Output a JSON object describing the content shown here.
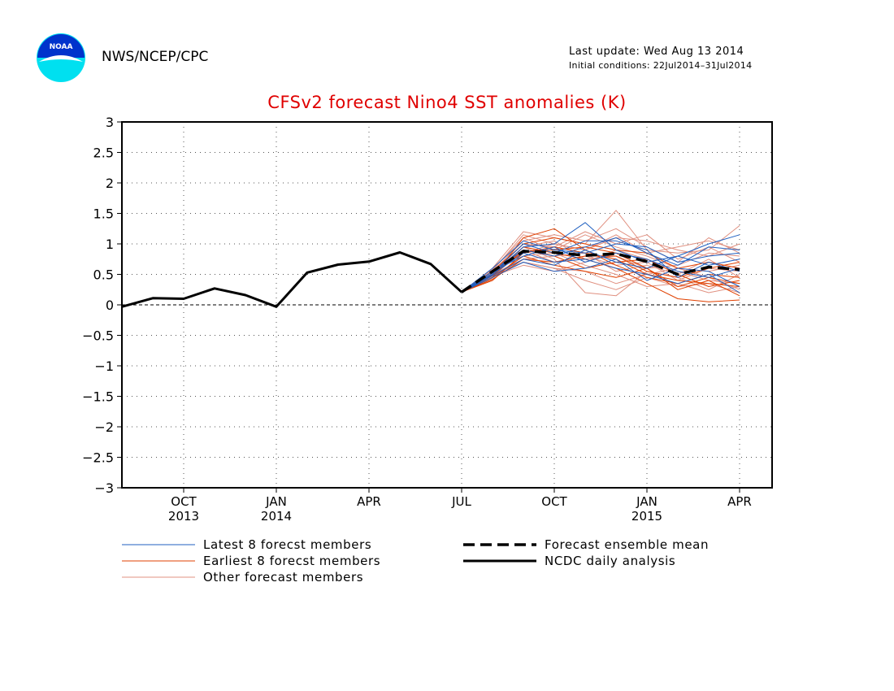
{
  "header": {
    "org": "NWS/NCEP/CPC",
    "last_update": "Last update: Wed Aug 13 2014",
    "initial_conditions": "Initial conditions: 22Jul2014–31Jul2014",
    "logo_text": "NOAA"
  },
  "chart_data": {
    "type": "line",
    "title": "CFSv2 forecast Nino4 SST anomalies (K)",
    "xlabel": "",
    "ylabel": "",
    "ylim": [
      -3,
      3
    ],
    "yticks": [
      "3",
      "2.5",
      "2",
      "1.5",
      "1",
      "0.5",
      "0",
      "−0.5",
      "−1",
      "−1.5",
      "−2",
      "−2.5",
      "−3"
    ],
    "ytick_values": [
      3,
      2.5,
      2,
      1.5,
      1,
      0.5,
      0,
      -0.5,
      -1,
      -1.5,
      -2,
      -2.5,
      -3
    ],
    "xlim": [
      "2013-08",
      "2015-04"
    ],
    "xticks": [
      {
        "label": "OCT",
        "year": "2013",
        "x": "2013-10"
      },
      {
        "label": "JAN",
        "year": "2014",
        "x": "2014-01"
      },
      {
        "label": "APR",
        "year": "",
        "x": "2014-04"
      },
      {
        "label": "JUL",
        "year": "",
        "x": "2014-07"
      },
      {
        "label": "OCT",
        "year": "",
        "x": "2014-10"
      },
      {
        "label": "JAN",
        "year": "2015",
        "x": "2015-01"
      },
      {
        "label": "APR",
        "year": "",
        "x": "2015-04"
      }
    ],
    "grid": true,
    "analysis": {
      "name": "NCDC daily analysis",
      "color": "#000000",
      "x": [
        "2013-08",
        "2013-09",
        "2013-10",
        "2013-11",
        "2013-12",
        "2014-01",
        "2014-02",
        "2014-03",
        "2014-04",
        "2014-05",
        "2014-06",
        "2014-07"
      ],
      "y": [
        -0.03,
        0.11,
        0.1,
        0.27,
        0.16,
        -0.03,
        0.53,
        0.66,
        0.71,
        0.86,
        0.67,
        0.21
      ]
    },
    "forecast_x": [
      "2014-07",
      "2014-08",
      "2014-09",
      "2014-10",
      "2014-11",
      "2014-12",
      "2015-01",
      "2015-02",
      "2015-03",
      "2015-04"
    ],
    "ensemble_mean": {
      "name": "Forecast ensemble mean",
      "color": "#000000",
      "y": [
        0.21,
        0.55,
        0.88,
        0.86,
        0.81,
        0.84,
        0.71,
        0.5,
        0.62,
        0.58
      ]
    },
    "latest_members": {
      "name": "Latest 8 forecst members",
      "color": "#1f5fc0",
      "members": [
        [
          0.21,
          0.5,
          0.95,
          1.0,
          1.35,
          0.9,
          0.7,
          0.8,
          1.0,
          1.15
        ],
        [
          0.21,
          0.55,
          0.9,
          0.8,
          0.95,
          1.1,
          0.85,
          0.65,
          0.95,
          0.9
        ],
        [
          0.21,
          0.45,
          0.7,
          0.55,
          0.6,
          0.75,
          0.4,
          0.6,
          0.55,
          0.3
        ],
        [
          0.21,
          0.6,
          1.05,
          0.9,
          0.85,
          1.0,
          0.95,
          0.7,
          0.8,
          0.85
        ],
        [
          0.21,
          0.5,
          0.85,
          0.7,
          0.75,
          0.6,
          0.5,
          0.35,
          0.5,
          0.2
        ],
        [
          0.21,
          0.55,
          0.8,
          0.95,
          0.7,
          0.85,
          0.75,
          0.55,
          0.45,
          0.6
        ],
        [
          0.21,
          0.48,
          0.75,
          0.65,
          0.9,
          0.7,
          0.6,
          0.8,
          0.65,
          0.75
        ],
        [
          0.21,
          0.52,
          1.0,
          0.85,
          1.05,
          1.05,
          0.9,
          0.45,
          0.7,
          0.55
        ]
      ]
    },
    "earliest_members": {
      "name": "Earliest 8 forecst members",
      "color": "#e04000",
      "members": [
        [
          0.21,
          0.45,
          1.1,
          1.25,
          0.9,
          0.65,
          0.45,
          0.35,
          0.5,
          0.45
        ],
        [
          0.21,
          0.5,
          0.95,
          0.85,
          0.75,
          0.6,
          0.35,
          0.1,
          0.05,
          0.08
        ],
        [
          0.21,
          0.4,
          0.85,
          0.95,
          0.85,
          0.75,
          0.5,
          0.4,
          0.35,
          0.3
        ],
        [
          0.21,
          0.55,
          1.0,
          1.1,
          1.0,
          0.9,
          0.85,
          0.6,
          0.7,
          0.6
        ],
        [
          0.21,
          0.45,
          0.8,
          0.65,
          0.55,
          0.45,
          0.6,
          0.25,
          0.4,
          0.15
        ],
        [
          0.21,
          0.5,
          0.9,
          0.8,
          0.6,
          0.7,
          0.75,
          0.5,
          0.3,
          0.4
        ],
        [
          0.21,
          0.42,
          0.75,
          0.7,
          0.8,
          0.8,
          0.55,
          0.45,
          0.6,
          0.7
        ],
        [
          0.21,
          0.48,
          0.88,
          0.9,
          0.95,
          0.85,
          0.6,
          0.3,
          0.45,
          0.35
        ]
      ]
    },
    "other_members": {
      "name": "Other forecast members",
      "color": "#e09080",
      "members": [
        [
          0.21,
          0.6,
          1.2,
          1.1,
          1.0,
          1.55,
          0.9,
          0.85,
          0.9,
          1.3
        ],
        [
          0.21,
          0.55,
          1.05,
          1.15,
          1.05,
          1.25,
          0.95,
          0.7,
          1.1,
          0.85
        ],
        [
          0.21,
          0.5,
          0.7,
          0.6,
          0.4,
          0.25,
          0.45,
          0.3,
          0.35,
          0.2
        ],
        [
          0.21,
          0.45,
          0.95,
          0.75,
          0.2,
          0.15,
          0.55,
          0.45,
          0.25,
          0.5
        ],
        [
          0.21,
          0.55,
          0.85,
          1.0,
          0.9,
          1.1,
          1.05,
          0.9,
          0.8,
          1.0
        ],
        [
          0.21,
          0.5,
          0.75,
          0.8,
          0.85,
          0.55,
          0.65,
          0.5,
          0.75,
          0.45
        ],
        [
          0.21,
          0.58,
          1.1,
          0.9,
          1.15,
          0.95,
          0.8,
          0.6,
          0.55,
          0.65
        ],
        [
          0.21,
          0.47,
          0.65,
          0.55,
          0.7,
          0.9,
          0.75,
          0.55,
          0.4,
          0.35
        ],
        [
          0.21,
          0.52,
          0.95,
          1.05,
          0.75,
          0.8,
          0.6,
          0.65,
          0.85,
          0.8
        ],
        [
          0.21,
          0.44,
          0.8,
          0.85,
          0.65,
          0.5,
          0.3,
          0.35,
          0.2,
          0.3
        ],
        [
          0.21,
          0.53,
          1.0,
          0.95,
          1.2,
          1.0,
          1.15,
          0.75,
          0.95,
          0.7
        ],
        [
          0.21,
          0.49,
          0.9,
          0.7,
          0.8,
          0.65,
          0.7,
          0.4,
          0.6,
          0.55
        ],
        [
          0.21,
          0.56,
          1.15,
          1.0,
          0.9,
          1.15,
          0.85,
          0.95,
          1.05,
          0.9
        ],
        [
          0.21,
          0.46,
          0.7,
          0.6,
          0.55,
          0.35,
          0.5,
          0.6,
          0.45,
          0.25
        ]
      ]
    },
    "legend": [
      {
        "label": "Latest 8 forecst members",
        "style": "thin-blue"
      },
      {
        "label": "Forecast ensemble mean",
        "style": "thick-dashed-black"
      },
      {
        "label": "Earliest 8 forecst members",
        "style": "thin-red"
      },
      {
        "label": "NCDC daily analysis",
        "style": "thick-solid-black"
      },
      {
        "label": "Other forecast members",
        "style": "thin-pink"
      }
    ],
    "legend_placement": "bottom"
  }
}
